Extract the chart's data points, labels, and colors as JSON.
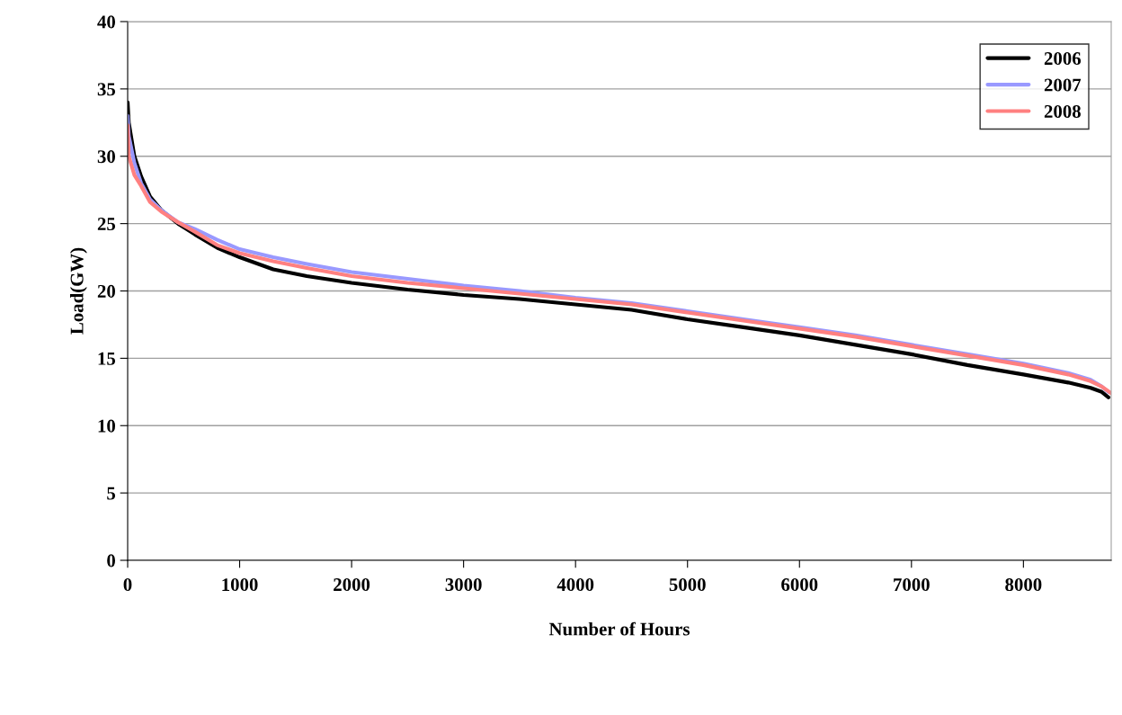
{
  "chart_data": {
    "type": "line",
    "xlabel": "Number of Hours",
    "ylabel": "Load(GW)",
    "xlim": [
      0,
      8784
    ],
    "xticks": [
      0,
      1000,
      2000,
      3000,
      4000,
      5000,
      6000,
      7000,
      8000
    ],
    "ylim": [
      0,
      40
    ],
    "yticks": [
      0,
      5,
      10,
      15,
      20,
      25,
      30,
      35,
      40
    ],
    "grid": "y",
    "legend": "top right",
    "marker": "none",
    "line_style": "solid",
    "series": [
      {
        "name": "2006",
        "color": "#000000",
        "x": [
          0,
          10,
          60,
          120,
          200,
          300,
          450,
          600,
          800,
          1000,
          1300,
          1600,
          2000,
          2500,
          3000,
          3500,
          4000,
          4500,
          5000,
          5500,
          6000,
          6500,
          7000,
          7500,
          8000,
          8400,
          8600,
          8700,
          8760
        ],
        "values": [
          34,
          32.5,
          30,
          28.5,
          27,
          26,
          25,
          24.2,
          23.2,
          22.5,
          21.6,
          21.1,
          20.6,
          20.1,
          19.7,
          19.4,
          19.0,
          18.6,
          17.9,
          17.3,
          16.7,
          16.0,
          15.3,
          14.5,
          13.8,
          13.2,
          12.8,
          12.5,
          12.1
        ]
      },
      {
        "name": "2007",
        "color": "#9999ff",
        "x": [
          0,
          10,
          60,
          120,
          200,
          300,
          450,
          600,
          800,
          1000,
          1300,
          1600,
          2000,
          2500,
          3000,
          3500,
          4000,
          4500,
          5000,
          5500,
          6000,
          6500,
          7000,
          7500,
          8000,
          8400,
          8600,
          8700,
          8760
        ],
        "values": [
          33,
          31.5,
          29.5,
          28,
          26.8,
          26,
          25.1,
          24.6,
          23.8,
          23.1,
          22.5,
          22,
          21.4,
          20.9,
          20.4,
          20,
          19.5,
          19.1,
          18.5,
          17.9,
          17.3,
          16.7,
          16,
          15.3,
          14.6,
          13.9,
          13.4,
          12.9,
          12.5
        ]
      },
      {
        "name": "2008",
        "color": "#ff8080",
        "x": [
          0,
          10,
          60,
          120,
          200,
          300,
          450,
          600,
          800,
          1000,
          1300,
          1600,
          2000,
          2500,
          3000,
          3500,
          4000,
          4500,
          5000,
          5500,
          6000,
          6500,
          7000,
          7500,
          8000,
          8400,
          8600,
          8700,
          8784
        ],
        "values": [
          32.3,
          30,
          28.6,
          27.8,
          26.6,
          25.9,
          25.1,
          24.4,
          23.4,
          22.8,
          22.2,
          21.7,
          21.1,
          20.6,
          20.2,
          19.8,
          19.4,
          19.0,
          18.4,
          17.8,
          17.2,
          16.6,
          15.9,
          15.2,
          14.5,
          13.8,
          13.3,
          12.9,
          12.4
        ]
      }
    ]
  }
}
